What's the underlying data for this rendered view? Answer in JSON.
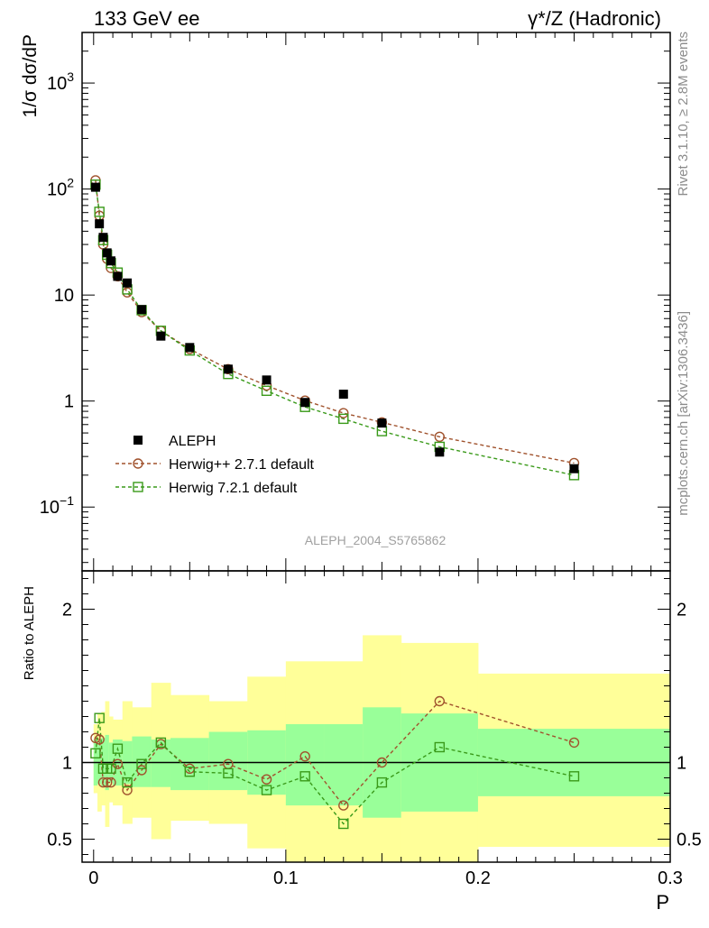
{
  "header": {
    "left": "133 GeV ee",
    "right": "γ*/Z (Hadronic)"
  },
  "side_labels": {
    "rivet": "Rivet 3.1.10, ≥ 2.8M events",
    "mcplots": "mcplots.cern.ch [arXiv:1306.3436]"
  },
  "watermark": "ALEPH_2004_S5765862",
  "colors": {
    "data": "#000000",
    "herwigpp": "#a0522d",
    "herwig7": "#3a9a1a",
    "band_inner": "#99ff99",
    "band_outer": "#ffff99"
  },
  "chart_data": [
    {
      "type": "scatter",
      "panel": "main",
      "ylabel": "1/σ  dσ/dP",
      "yscale": "log",
      "xlim": [
        0,
        0.3
      ],
      "ylim": [
        0.025,
        3000
      ],
      "ytick_labels": [
        "10^-1",
        "1",
        "10",
        "10^2",
        "10^3"
      ],
      "ytick_values": [
        0.1,
        1,
        10,
        100,
        1000
      ],
      "legend_position": "bottom-left",
      "series": [
        {
          "name": "ALEPH",
          "style": "data",
          "x": [
            0.001,
            0.003,
            0.005,
            0.007,
            0.009,
            0.0125,
            0.0175,
            0.025,
            0.035,
            0.05,
            0.07,
            0.09,
            0.11,
            0.13,
            0.15,
            0.18,
            0.25
          ],
          "y": [
            104,
            47,
            35,
            25,
            21,
            15,
            13,
            7.3,
            4.1,
            3.2,
            2.0,
            1.58,
            0.97,
            1.16,
            0.62,
            0.33,
            0.23
          ]
        },
        {
          "name": "Herwig++ 2.7.1 default",
          "style": "circle",
          "x": [
            0.001,
            0.003,
            0.005,
            0.007,
            0.009,
            0.0125,
            0.0175,
            0.025,
            0.035,
            0.05,
            0.07,
            0.09,
            0.11,
            0.13,
            0.15,
            0.18,
            0.25
          ],
          "y": [
            121,
            56,
            30,
            22,
            18,
            15,
            10.6,
            6.9,
            4.6,
            3.1,
            2.0,
            1.4,
            1.01,
            0.77,
            0.63,
            0.46,
            0.26
          ]
        },
        {
          "name": "Herwig 7.2.1 default",
          "style": "square",
          "x": [
            0.001,
            0.003,
            0.005,
            0.007,
            0.009,
            0.0125,
            0.0175,
            0.025,
            0.035,
            0.05,
            0.07,
            0.09,
            0.11,
            0.13,
            0.15,
            0.18,
            0.25
          ],
          "y": [
            110,
            61,
            33,
            24,
            20,
            16.3,
            11.3,
            7.2,
            4.6,
            3.0,
            1.8,
            1.25,
            0.88,
            0.68,
            0.52,
            0.37,
            0.2
          ]
        }
      ]
    },
    {
      "type": "line",
      "panel": "ratio",
      "xlabel": "P",
      "ylabel": "Ratio to ALEPH",
      "xlim": [
        -0.006,
        0.3
      ],
      "ylim": [
        0.35,
        2.25
      ],
      "xtick_labels": [
        "0",
        "0.1",
        "0.2",
        "0.3"
      ],
      "xtick_values": [
        0,
        0.1,
        0.2,
        0.3
      ],
      "ytick_labels": [
        "0.5",
        "1",
        "2"
      ],
      "ytick_values": [
        0.5,
        1,
        2
      ],
      "reference_line": 1,
      "bands": {
        "edges": [
          0,
          0.002,
          0.004,
          0.006,
          0.008,
          0.01,
          0.015,
          0.02,
          0.03,
          0.04,
          0.06,
          0.08,
          0.1,
          0.12,
          0.14,
          0.16,
          0.2,
          0.3
        ],
        "inner_lo": [
          0.85,
          0.86,
          0.84,
          0.82,
          0.87,
          0.85,
          0.86,
          0.84,
          0.84,
          0.82,
          0.82,
          0.79,
          0.72,
          0.72,
          0.64,
          0.68,
          0.78
        ],
        "inner_hi": [
          1.15,
          1.14,
          1.16,
          1.18,
          1.13,
          1.15,
          1.14,
          1.17,
          1.15,
          1.16,
          1.2,
          1.21,
          1.25,
          1.25,
          1.36,
          1.32,
          1.22
        ],
        "outer_lo": [
          0.8,
          0.68,
          0.72,
          0.58,
          0.74,
          0.72,
          0.6,
          0.64,
          0.5,
          0.62,
          0.6,
          0.44,
          0.35,
          0.35,
          0.35,
          0.35,
          0.45
        ],
        "outer_hi": [
          1.25,
          1.32,
          1.33,
          1.4,
          1.3,
          1.28,
          1.4,
          1.36,
          1.52,
          1.44,
          1.4,
          1.56,
          1.66,
          1.66,
          1.83,
          1.78,
          1.58
        ]
      },
      "series": [
        {
          "name": "Herwig++ 2.7.1 default",
          "style": "circle",
          "x": [
            0.001,
            0.003,
            0.005,
            0.007,
            0.009,
            0.0125,
            0.0175,
            0.025,
            0.035,
            0.05,
            0.07,
            0.09,
            0.11,
            0.13,
            0.15,
            0.18,
            0.25
          ],
          "y": [
            1.16,
            1.15,
            0.87,
            0.87,
            0.87,
            0.99,
            0.82,
            0.95,
            1.12,
            0.96,
            0.99,
            0.89,
            1.04,
            0.72,
            1.0,
            1.4,
            1.13
          ]
        },
        {
          "name": "Herwig 7.2.1 default",
          "style": "square",
          "x": [
            0.001,
            0.003,
            0.005,
            0.007,
            0.009,
            0.0125,
            0.0175,
            0.025,
            0.035,
            0.05,
            0.07,
            0.09,
            0.11,
            0.13,
            0.15,
            0.18,
            0.25
          ],
          "y": [
            1.06,
            1.29,
            0.96,
            0.96,
            0.96,
            1.09,
            0.87,
            0.99,
            1.13,
            0.94,
            0.93,
            0.82,
            0.91,
            0.6,
            0.87,
            1.1,
            0.91
          ]
        }
      ]
    }
  ]
}
